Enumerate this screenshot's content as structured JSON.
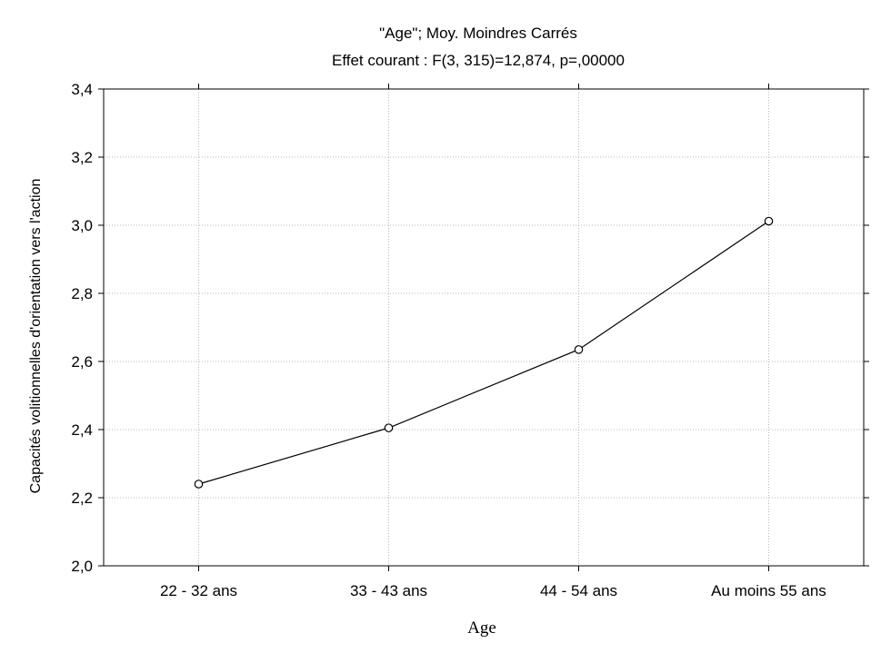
{
  "chart_data": {
    "type": "line",
    "title": "\"Age\"; Moy. Moindres Carrés",
    "subtitle": "Effet courant : F(3, 315)=12,874, p=,00000",
    "xlabel": "Age",
    "ylabel": "Capacités volitionnelles d'orientation vers l'action",
    "categories": [
      "22 - 32 ans",
      "33 - 43 ans",
      "44 - 54 ans",
      "Au moins 55 ans"
    ],
    "series": [
      {
        "values": [
          2.24,
          2.405,
          2.635,
          3.012
        ]
      }
    ],
    "ylim": [
      2.0,
      3.4
    ],
    "yticks": [
      2.0,
      2.2,
      2.4,
      2.6,
      2.8,
      3.0,
      3.2,
      3.4
    ],
    "ytick_labels": [
      "2,0",
      "2,2",
      "2,4",
      "2,6",
      "2,8",
      "3,0",
      "3,2",
      "3,4"
    ],
    "grid": true,
    "legend": "none",
    "marker": "open-circle",
    "line_color": "#000000"
  }
}
